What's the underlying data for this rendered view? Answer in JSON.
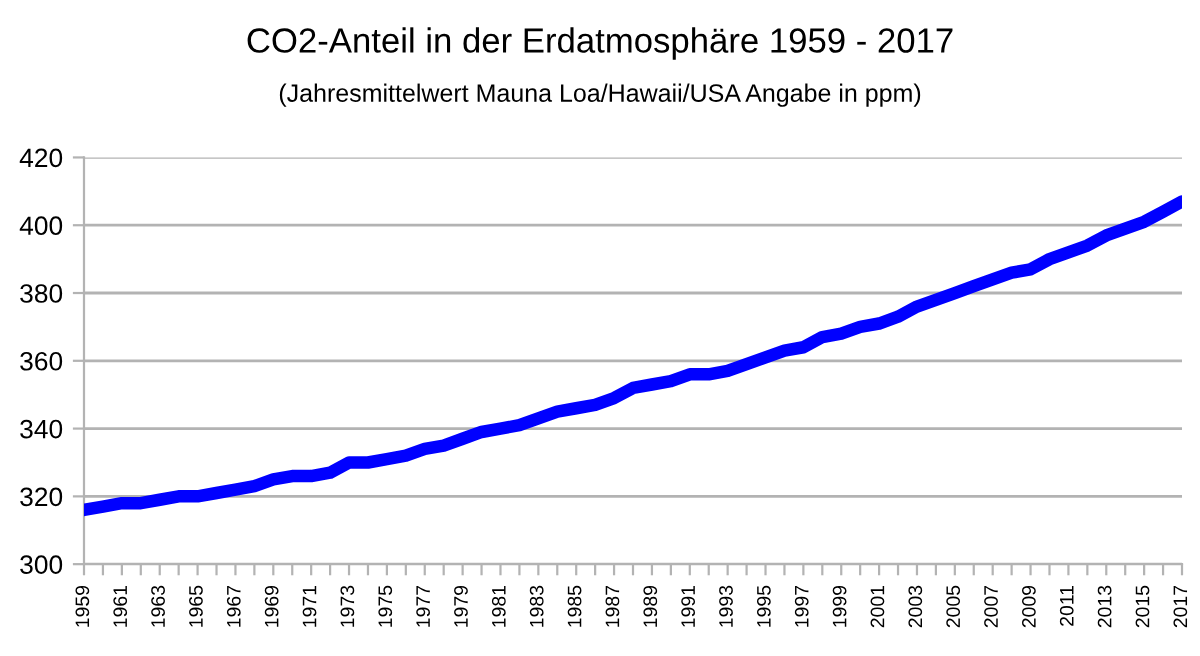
{
  "chart_data": {
    "type": "line",
    "title": "CO2-Anteil in der Erdatmosphäre 1959 - 2017",
    "subtitle": "(Jahresmittelwert Mauna Loa/Hawaii/USA Angabe in ppm)",
    "categories": [
      "1959",
      null,
      "1961",
      null,
      "1963",
      null,
      "1965",
      null,
      "1967",
      null,
      "1969",
      null,
      "1971",
      null,
      "1973",
      null,
      "1975",
      null,
      "1977",
      null,
      "1979",
      null,
      "1981",
      null,
      "1983",
      null,
      "1985",
      null,
      "1987",
      null,
      "1989",
      null,
      "1991",
      null,
      "1993",
      null,
      "1995",
      null,
      "1997",
      null,
      "1999",
      null,
      "2001",
      null,
      "2003",
      null,
      "2005",
      null,
      "2007",
      null,
      "2009",
      null,
      "2011",
      null,
      "2013",
      null,
      "2015",
      null,
      "2017"
    ],
    "series": [
      {
        "color": "#0000ff",
        "values": [
          316,
          317,
          318,
          318,
          319,
          320,
          320,
          321,
          322,
          323,
          325,
          326,
          326,
          327,
          330,
          330,
          331,
          332,
          334,
          335,
          337,
          339,
          340,
          341,
          343,
          345,
          346,
          347,
          349,
          352,
          353,
          354,
          356,
          356,
          357,
          359,
          361,
          363,
          364,
          367,
          368,
          370,
          371,
          373,
          376,
          378,
          380,
          382,
          384,
          386,
          387,
          390,
          392,
          394,
          397,
          399,
          401,
          404,
          407
        ]
      }
    ],
    "ylim": [
      300,
      420
    ],
    "yticks": [
      300,
      320,
      340,
      360,
      380,
      400,
      420
    ],
    "grid": "y",
    "legend": false,
    "marker": "none",
    "line_style": "solid"
  }
}
